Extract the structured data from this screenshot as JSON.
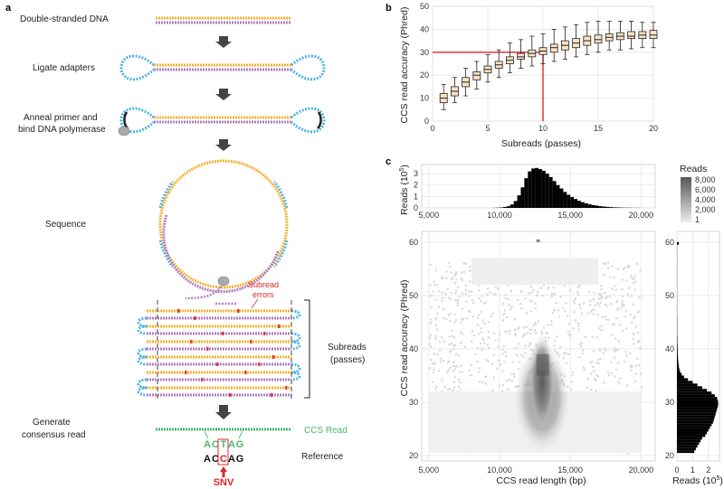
{
  "panels": {
    "a": "a",
    "b": "b",
    "c": "c"
  },
  "panel_a": {
    "steps": [
      "Double-stranded DNA",
      "Ligate adapters",
      "Anneal primer and",
      "bind DNA polymerase",
      "Sequence",
      "Subreads",
      "(passes)",
      "Generate",
      "consensus read"
    ],
    "subread_errors_1": "Subread",
    "subread_errors_2": "errors",
    "ccs_read": "CCS Read",
    "read_bases": [
      "A",
      "C",
      "T",
      "A",
      "G"
    ],
    "reference": "Reference",
    "ref_bases": [
      "A",
      "C",
      "C",
      "A",
      "G"
    ],
    "snv": "SNV",
    "colors": {
      "strand_top": "#f5b335",
      "strand_bottom": "#b07fc2",
      "adapter": "#4fb3e5",
      "error": "#e23b3b",
      "ccs": "#4cb86b",
      "snv": "#e0262a"
    }
  },
  "chart_data": [
    {
      "type": "box",
      "title": "",
      "xlabel": "Subreads (passes)",
      "ylabel": "CCS read accuracy (Phred)",
      "xlim": [
        0,
        20
      ],
      "ylim": [
        0,
        50
      ],
      "xticks": [
        0,
        5,
        10,
        15,
        20
      ],
      "yticks": [
        0,
        10,
        20,
        30,
        40,
        50
      ],
      "x": [
        1,
        2,
        3,
        4,
        5,
        6,
        7,
        8,
        9,
        10,
        11,
        12,
        13,
        14,
        15,
        16,
        17,
        18,
        19,
        20
      ],
      "q1": [
        8,
        11,
        15,
        18,
        21,
        23,
        25,
        27,
        28,
        29,
        30,
        31,
        32,
        33,
        34,
        35,
        35.5,
        36,
        36,
        36
      ],
      "median": [
        10,
        13,
        17,
        20,
        22.5,
        24.5,
        26.5,
        28,
        29.5,
        30.5,
        32,
        33,
        34,
        35,
        35.5,
        36.5,
        37,
        37,
        37.5,
        37.5
      ],
      "q3": [
        12,
        15,
        19,
        21.5,
        24,
        26,
        28,
        29.5,
        31,
        32,
        33.5,
        35,
        36,
        37,
        37.5,
        38,
        38.5,
        39,
        39,
        39.5
      ],
      "whisker_low": [
        5,
        8,
        11,
        14,
        17,
        19,
        21,
        23,
        24,
        25,
        26,
        27,
        28,
        29,
        30,
        31,
        31,
        31.5,
        32,
        32
      ],
      "whisker_high": [
        16,
        19,
        23,
        26,
        29,
        31,
        34,
        35.5,
        37,
        38,
        40,
        41,
        42,
        43,
        43.5,
        43.5,
        43.5,
        43.5,
        43,
        43
      ],
      "reference_line": {
        "x": 10,
        "y": 30,
        "color": "#e0262a"
      }
    },
    {
      "type": "heatmap",
      "title": "",
      "xlabel": "CCS read length (bp)",
      "ylabel": "CCS read accuracy (Phred)",
      "xlim": [
        4500,
        21000
      ],
      "ylim": [
        19,
        62
      ],
      "xticks": [
        5000,
        10000,
        15000,
        20000
      ],
      "xtick_labels": [
        "5,000",
        "10,000",
        "15,000",
        "20,000"
      ],
      "yticks": [
        20,
        30,
        40,
        50,
        60
      ],
      "colorbar": {
        "title": "Reads",
        "ticks": [
          "8,000",
          "6,000",
          "4,000",
          "2,000",
          "1"
        ]
      },
      "density_peak": {
        "x_center": 13000,
        "x_spread": 900,
        "y_range": [
          22,
          40
        ]
      }
    },
    {
      "type": "histogram",
      "title": "",
      "xlabel": "",
      "ylabel_main": "Reads (10",
      "ylabel_exp": "5",
      "ylabel_end": ")",
      "xlim": [
        4500,
        21000
      ],
      "ylim": [
        0,
        3.8
      ],
      "xticks": [
        5000,
        10000,
        15000,
        20000
      ],
      "xtick_labels": [
        "5,000",
        "10,000",
        "15,000",
        "20,000"
      ],
      "yticks": [
        0,
        1,
        2,
        3
      ],
      "bin_start": 9500,
      "bin_width": 250,
      "counts": [
        0.01,
        0.02,
        0.04,
        0.08,
        0.15,
        0.3,
        0.6,
        1.1,
        1.8,
        2.6,
        3.2,
        3.45,
        3.5,
        3.4,
        3.25,
        3.0,
        2.7,
        2.35,
        2.0,
        1.7,
        1.4,
        1.15,
        0.95,
        0.78,
        0.62,
        0.5,
        0.4,
        0.32,
        0.25,
        0.2,
        0.15,
        0.12,
        0.09,
        0.07,
        0.05,
        0.04,
        0.03,
        0.02,
        0.02,
        0.01,
        0.01,
        0.01
      ]
    },
    {
      "type": "histogram_horizontal",
      "title": "",
      "xlabel_main": "Reads (10",
      "xlabel_exp": "5",
      "xlabel_end": ")",
      "xlim": [
        0,
        2.7
      ],
      "ylim": [
        19,
        62
      ],
      "xticks": [
        0,
        1,
        2
      ],
      "bin_start": 20.5,
      "bin_width": 0.5,
      "counts": [
        1.1,
        1.2,
        1.3,
        1.4,
        1.5,
        1.6,
        1.8,
        1.9,
        2.0,
        2.1,
        2.2,
        2.3,
        2.35,
        2.4,
        2.45,
        2.5,
        2.55,
        2.6,
        2.62,
        2.6,
        2.55,
        2.4,
        2.2,
        1.9,
        1.6,
        1.3,
        1.0,
        0.7,
        0.45,
        0.3,
        0.2,
        0.15,
        0.12,
        0.1,
        0.08,
        0.07,
        0.06,
        0.05,
        0.05,
        0.04,
        0.04,
        0.03,
        0.03,
        0.03,
        0.02,
        0.02,
        0.02,
        0.02,
        0.02,
        0.02,
        0.02,
        0.01,
        0.01,
        0.01,
        0.01,
        0.01,
        0.01,
        0.01,
        0.01,
        0.01,
        0.01,
        0.01,
        0.01,
        0.01,
        0.01,
        0.01,
        0.01,
        0.01,
        0.01,
        0.01,
        0.01,
        0.01,
        0.01,
        0.01,
        0.01,
        0.01,
        0.01,
        0.01,
        0.12
      ]
    }
  ]
}
